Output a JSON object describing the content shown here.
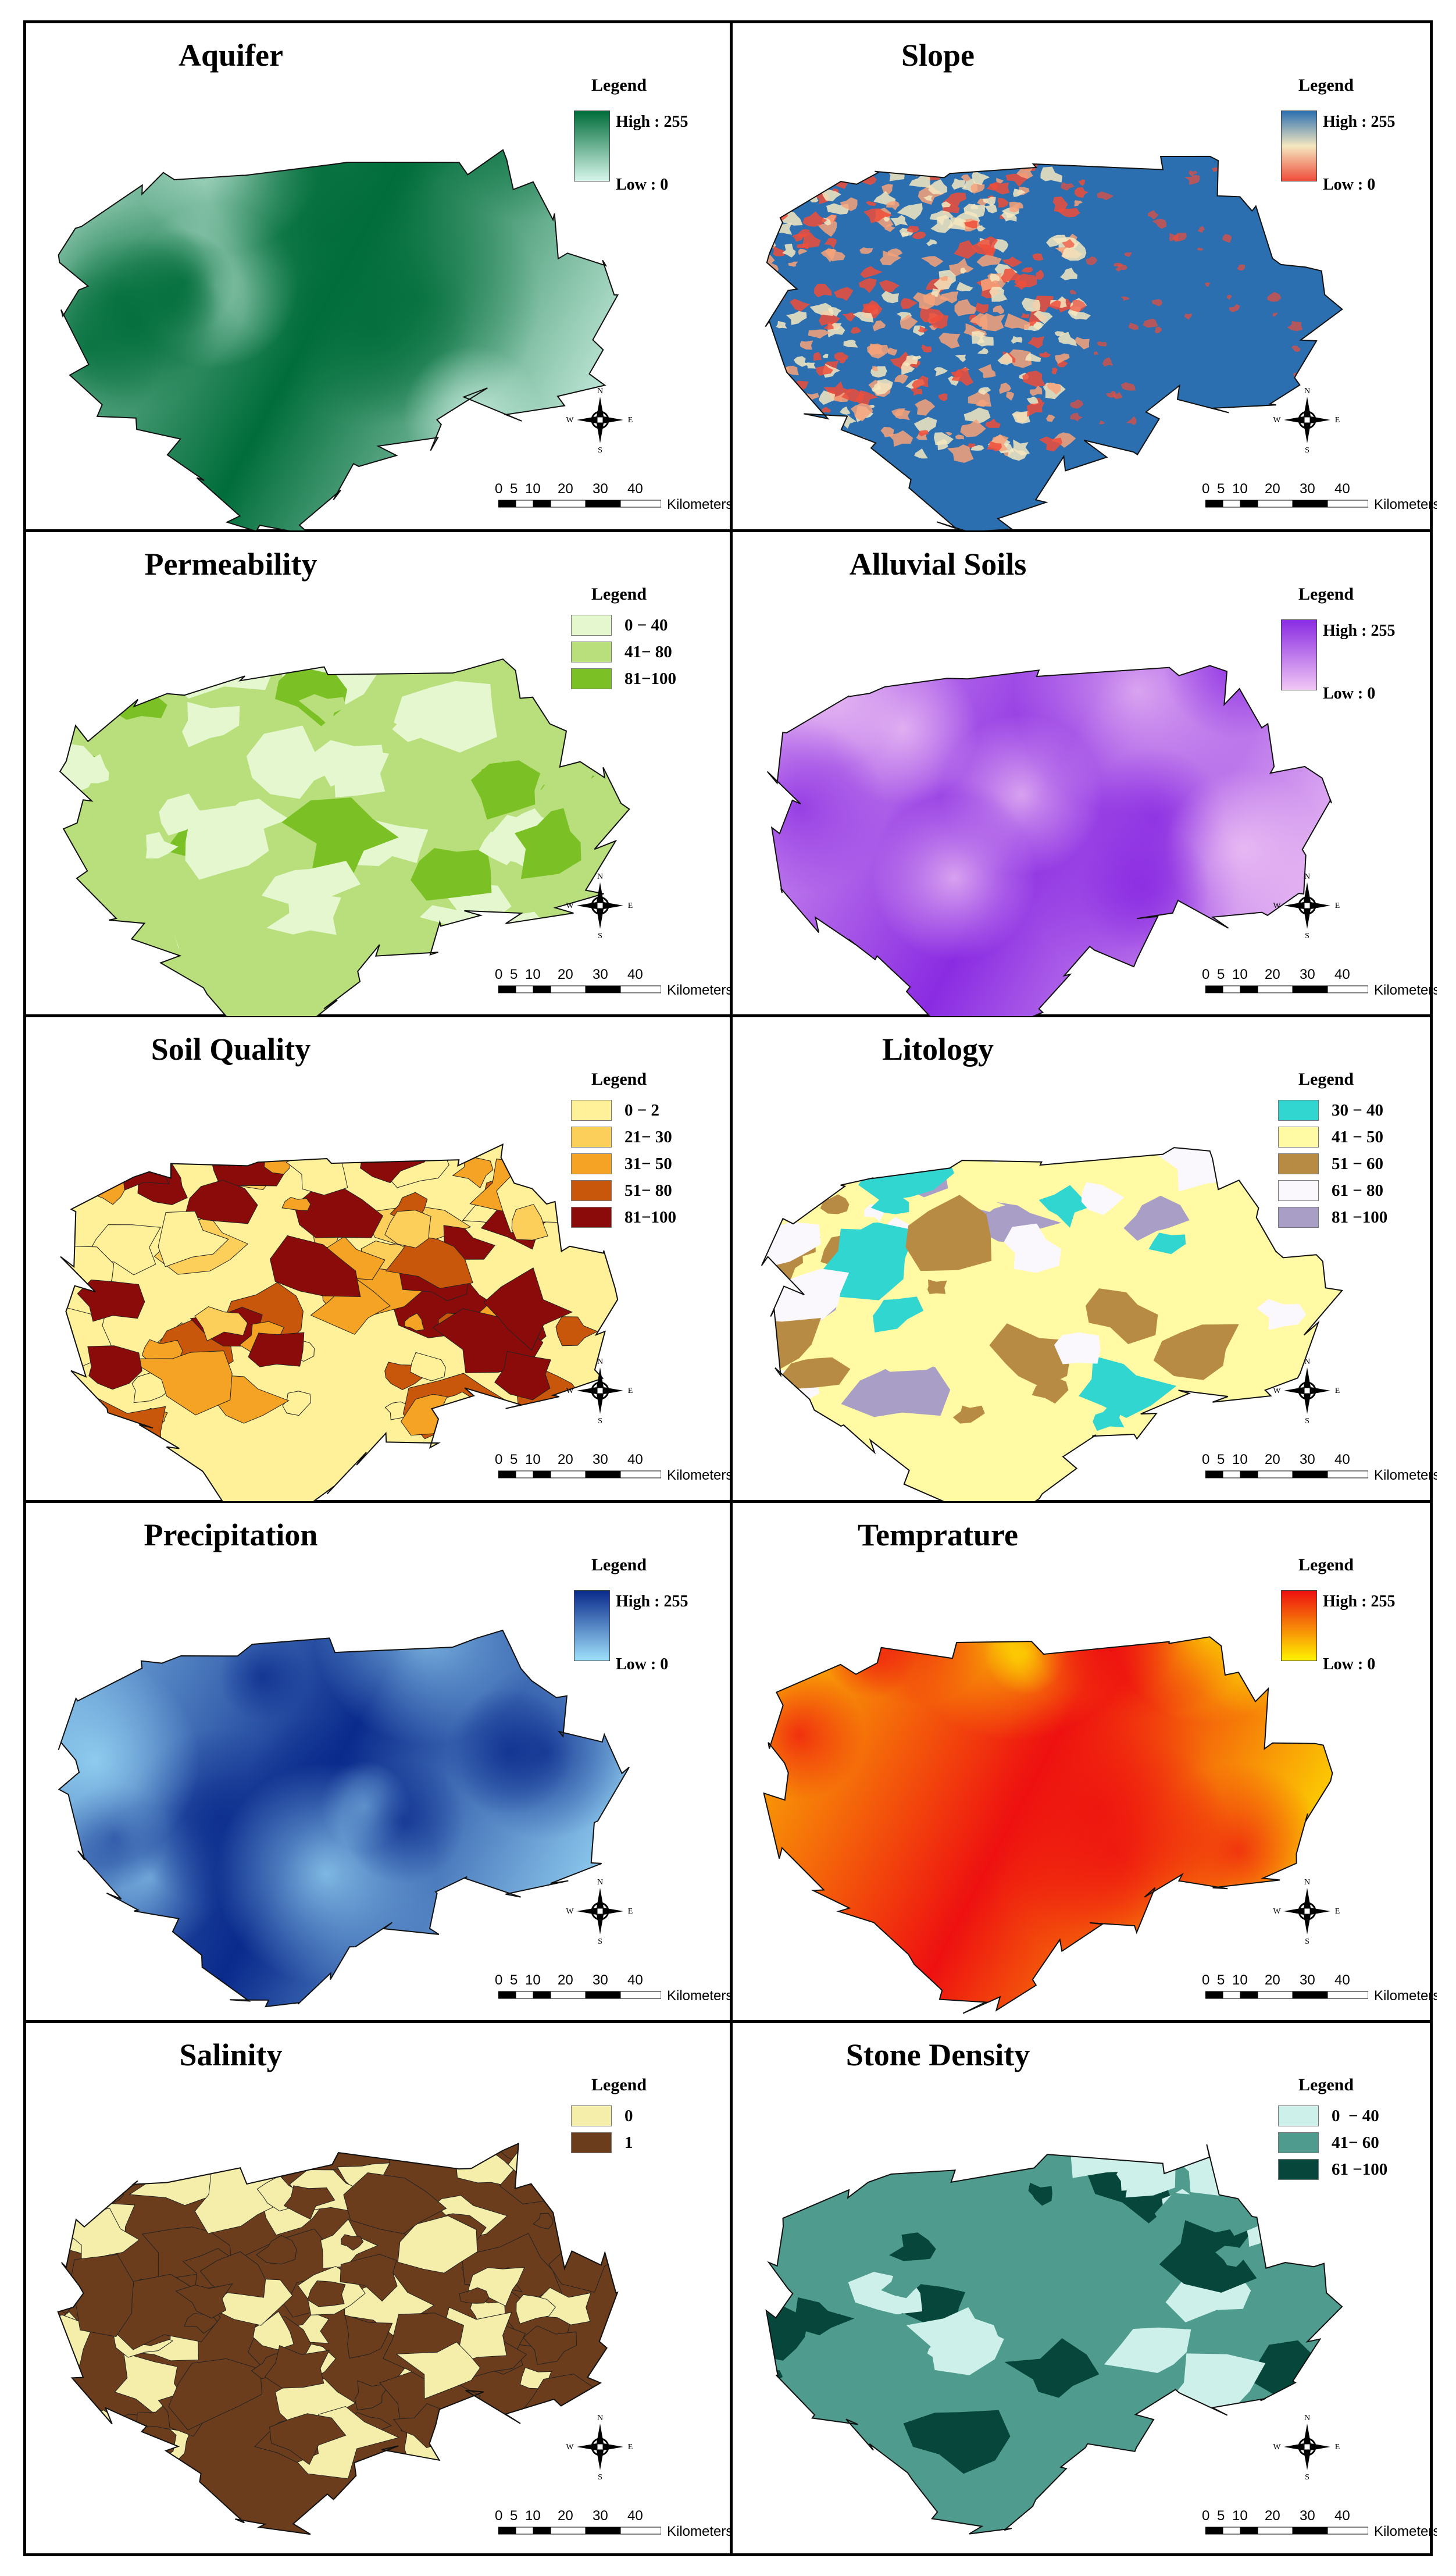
{
  "panels": [
    {
      "id": "aquifer",
      "title": "Aquifer",
      "legend_title": "Legend",
      "legend_type": "gradient",
      "high_label": "High : 255",
      "low_label": "Low : 0",
      "color_high": "#006d3a",
      "color_low": "#d6f5ea",
      "map_style": "gradient"
    },
    {
      "id": "slope",
      "title": "Slope",
      "legend_title": "Legend",
      "legend_type": "gradient",
      "high_label": "High : 255",
      "low_label": "Low : 0",
      "color_high": "#2b6fb0",
      "color_mid": "#f4e7c0",
      "color_low": "#ef4d3a",
      "map_style": "slope"
    },
    {
      "id": "permeability",
      "title": "Permeability",
      "legend_title": "Legend",
      "legend_type": "classes",
      "classes": [
        {
          "label": "0 − 40",
          "color": "#e4f7cf"
        },
        {
          "label": "41− 80",
          "color": "#b8df7c"
        },
        {
          "label": "81−100",
          "color": "#7bc126"
        }
      ],
      "map_style": "classes"
    },
    {
      "id": "alluvial",
      "title": "Alluvial Soils",
      "legend_title": "Legend",
      "legend_type": "gradient",
      "high_label": "High : 255",
      "low_label": "Low : 0",
      "color_high": "#8a2be2",
      "color_low": "#f0c6f4",
      "map_style": "gradient"
    },
    {
      "id": "soil_quality",
      "title": "Soil Quality",
      "legend_title": "Legend",
      "legend_type": "classes",
      "classes": [
        {
          "label": "0 − 2",
          "color": "#fff09a"
        },
        {
          "label": "21− 30",
          "color": "#fccf5a"
        },
        {
          "label": "31− 50",
          "color": "#f4a324"
        },
        {
          "label": "51− 80",
          "color": "#c8560b"
        },
        {
          "label": "81−100",
          "color": "#8b0b0b"
        }
      ],
      "map_style": "classes"
    },
    {
      "id": "litology",
      "title": "Litology",
      "legend_title": "Legend",
      "legend_type": "classes",
      "classes": [
        {
          "label": "30 − 40",
          "color": "#32d6d0"
        },
        {
          "label": "41 − 50",
          "color": "#fffaa3"
        },
        {
          "label": "51 − 60",
          "color": "#b88b44"
        },
        {
          "label": "61 − 80",
          "color": "#fbf8fd"
        },
        {
          "label": "81 −100",
          "color": "#a89ec6"
        }
      ],
      "map_style": "classes"
    },
    {
      "id": "precipitation",
      "title": "Precipitation",
      "legend_title": "Legend",
      "legend_type": "gradient",
      "high_label": "High : 255",
      "low_label": "Low : 0",
      "color_high": "#0a2a8c",
      "color_low": "#9fe0fb",
      "map_style": "gradient"
    },
    {
      "id": "temperature",
      "title": "Temprature",
      "legend_title": "Legend",
      "legend_type": "gradient",
      "high_label": "High : 255",
      "low_label": "Low : 0",
      "color_high": "#ee1010",
      "color_low": "#fff200",
      "map_style": "gradient"
    },
    {
      "id": "salinity",
      "title": "Salinity",
      "legend_title": "Legend",
      "legend_type": "classes",
      "classes": [
        {
          "label": "0",
          "color": "#f4eeaa"
        },
        {
          "label": "1",
          "color": "#6b3d1c"
        }
      ],
      "map_style": "classes"
    },
    {
      "id": "stone_density",
      "title": "Stone Density",
      "legend_title": "Legend",
      "legend_type": "classes",
      "classes": [
        {
          "label": "0  − 40",
          "color": "#cdf0ea"
        },
        {
          "label": "41− 60",
          "color": "#4f9b8e"
        },
        {
          "label": "61 −100",
          "color": "#07463b"
        }
      ],
      "map_style": "classes"
    }
  ],
  "compass": {
    "n": "N",
    "s": "S",
    "e": "E",
    "w": "W"
  },
  "scale": {
    "ticks": [
      "0",
      "5",
      "10",
      "20",
      "30",
      "40"
    ],
    "unit": "Kilometers"
  }
}
